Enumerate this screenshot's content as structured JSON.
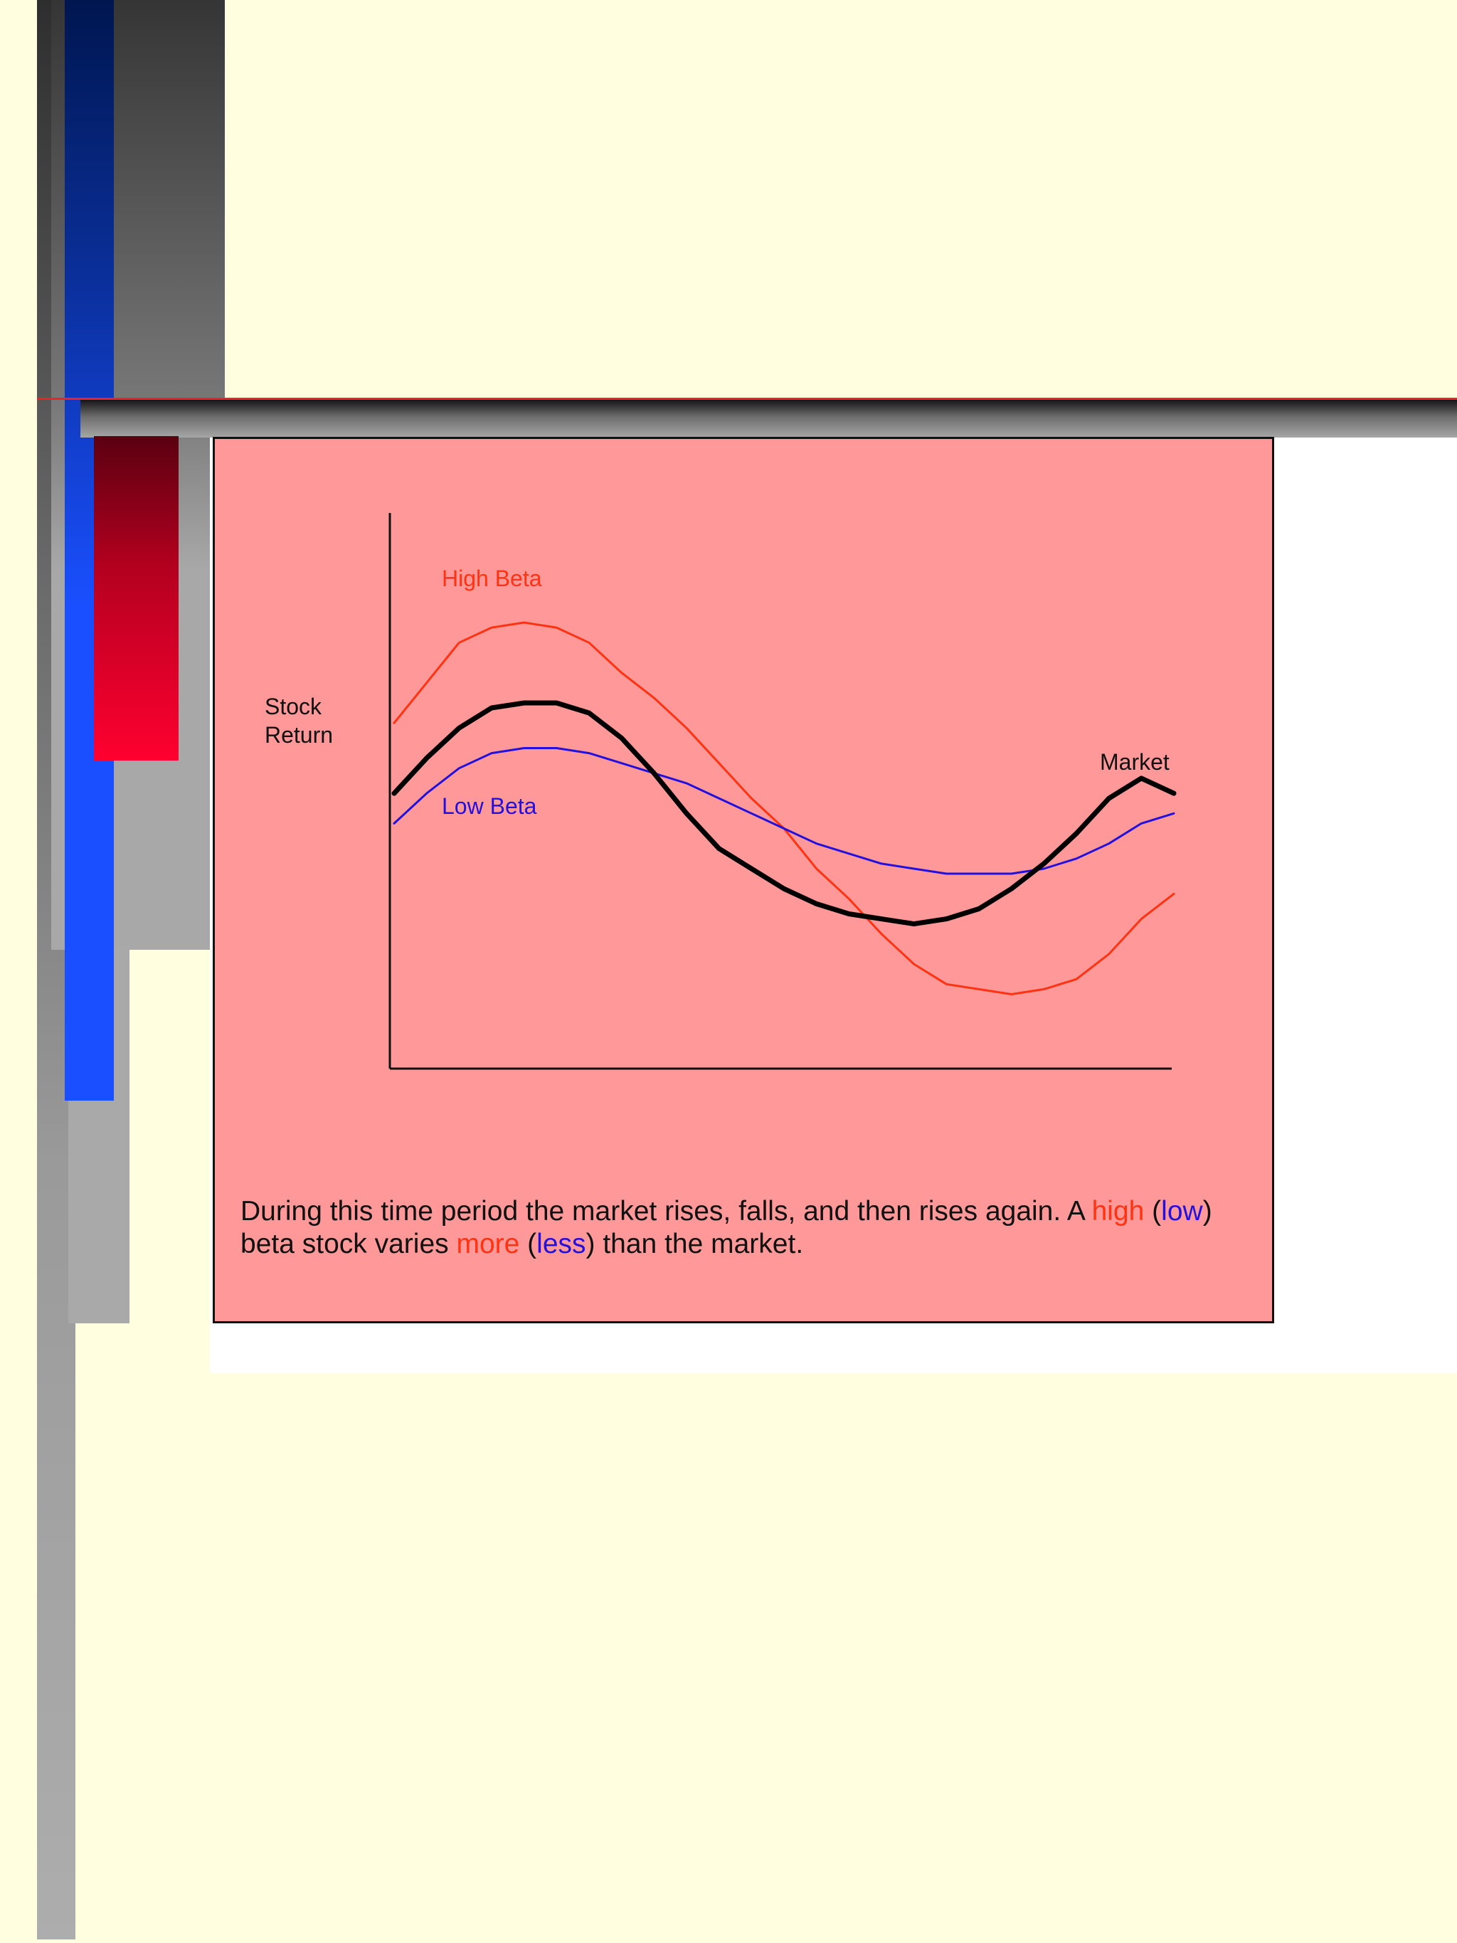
{
  "slide": {
    "colors": {
      "background": "#ffffdf",
      "chart_panel": "#ff9999",
      "high_beta": "#ff3311",
      "low_beta": "#2211dd",
      "market": "#000000",
      "accent_blue": "#1a4fff",
      "accent_red": "#ff0030"
    }
  },
  "chart_data": {
    "type": "line",
    "ylabel_lines": [
      "Stock",
      "Return"
    ],
    "xlabel": "",
    "x": [
      0,
      1,
      2,
      3,
      4,
      5,
      6,
      7,
      8,
      9,
      10,
      11,
      12,
      13,
      14,
      15,
      16,
      17,
      18,
      19,
      20,
      21,
      22,
      23,
      24
    ],
    "ylim": [
      0,
      100
    ],
    "grid": false,
    "series": [
      {
        "name": "High Beta",
        "color": "#ff3311",
        "width": 3,
        "values": [
          63,
          71,
          79,
          82,
          83,
          82,
          79,
          73,
          68,
          62,
          55,
          48,
          42,
          34,
          28,
          21,
          15,
          11,
          10,
          9,
          10,
          12,
          17,
          24,
          29
        ]
      },
      {
        "name": "Market",
        "color": "#000000",
        "width": 7,
        "values": [
          49,
          56,
          62,
          66,
          67,
          67,
          65,
          60,
          53,
          45,
          38,
          34,
          30,
          27,
          25,
          24,
          23,
          24,
          26,
          30,
          35,
          41,
          48,
          52,
          49
        ]
      },
      {
        "name": "Low Beta",
        "color": "#2211dd",
        "width": 3,
        "values": [
          43,
          49,
          54,
          57,
          58,
          58,
          57,
          55,
          53,
          51,
          48,
          45,
          42,
          39,
          37,
          35,
          34,
          33,
          33,
          33,
          34,
          36,
          39,
          43,
          45
        ]
      }
    ]
  },
  "caption": {
    "part1": "During this time period the market rises, falls, and then rises again. A ",
    "high": "high",
    "paren_open1": " (",
    "low": "low",
    "paren_close1": ")",
    "part2": " beta stock varies ",
    "more": "more",
    "paren_open2": " (",
    "less": "less",
    "part3": ") than the market."
  }
}
